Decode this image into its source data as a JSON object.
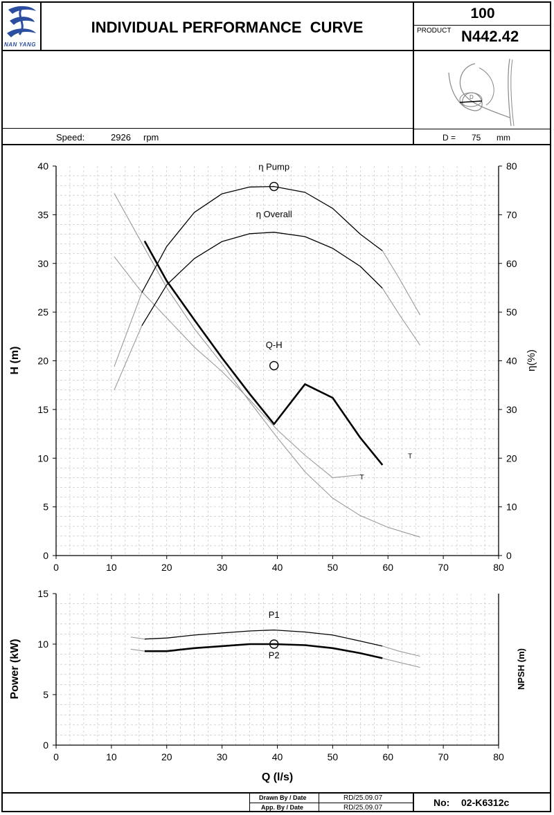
{
  "header": {
    "logo_text": "NAN YANG",
    "title": "INDIVIDUAL PERFORMANCE  CURVE",
    "size_code": "100",
    "product_label": "PRODUCT",
    "product_code": "N442.42"
  },
  "info": {
    "speed_label": "Speed:",
    "speed_value": "2926",
    "speed_unit": "rpm",
    "d_label": "D =",
    "d_value": "75",
    "d_unit": "mm",
    "impeller_label": "D"
  },
  "footer": {
    "drawn_label": "Drawn By / Date",
    "drawn_value": "RD/25.09.07",
    "app_label": "App. By / Date",
    "app_value": "RD/25.09.07",
    "no_label": "No:",
    "no_value": "02-K6312c"
  },
  "colors": {
    "main_curve": "#000000",
    "range_curve": "#9a9a9a",
    "grid": "#bdbdbd"
  },
  "chart_data": [
    {
      "type": "line",
      "xlabel": "Q (l/s)",
      "ylabel": "H (m)",
      "y2label": "η(%)",
      "xlim": [
        0,
        80
      ],
      "ylim": [
        0,
        40
      ],
      "y2lim": [
        0,
        80
      ],
      "xticks": [
        0,
        10,
        20,
        30,
        40,
        50,
        60,
        70,
        80
      ],
      "yticks": [
        0,
        5,
        10,
        15,
        20,
        25,
        30,
        35,
        40
      ],
      "y2ticks": [
        0,
        10,
        20,
        30,
        40,
        50,
        60,
        70,
        80
      ],
      "grid": true,
      "series": [
        {
          "name": "Q-H",
          "axis": "left",
          "style": "main",
          "x": [
            16,
            20,
            25,
            30,
            35,
            39.4,
            45,
            50,
            55,
            59
          ],
          "y": [
            32.3,
            28.2,
            24.2,
            20.3,
            16.6,
            13.5,
            17.6,
            16.2,
            12.1,
            9.3
          ]
        },
        {
          "name": "",
          "axis": "left",
          "style": "range",
          "x": [
            10.5,
            15,
            20,
            25,
            30,
            35,
            40,
            45,
            50,
            55,
            60,
            65.8
          ],
          "y": [
            37.2,
            32.6,
            27.5,
            23.3,
            19.7,
            15.8,
            12.1,
            8.6,
            5.9,
            4.1,
            2.9,
            1.9
          ]
        },
        {
          "name": "",
          "axis": "left",
          "style": "range",
          "x": [
            10.5,
            15,
            20,
            25,
            30,
            35,
            40,
            45,
            50,
            55.3
          ],
          "y": [
            30.7,
            27.4,
            24.4,
            21.4,
            18.9,
            16.0,
            12.9,
            10.3,
            8.0,
            8.3
          ]
        },
        {
          "name": "η Pump",
          "axis": "right",
          "style": "main",
          "x": [
            15.5,
            20,
            25,
            30,
            35,
            39.4,
            45,
            50,
            55,
            59
          ],
          "y": [
            54,
            63.5,
            70.5,
            74.3,
            75.7,
            75.8,
            74.6,
            71.3,
            66.0,
            62.6
          ]
        },
        {
          "name": "",
          "axis": "right",
          "style": "range",
          "x": [
            10.5,
            15.5
          ],
          "y": [
            38.8,
            54
          ]
        },
        {
          "name": "",
          "axis": "right",
          "style": "range",
          "x": [
            59,
            62,
            65.8
          ],
          "y": [
            62.6,
            57.0,
            49.4
          ]
        },
        {
          "name": "η Overall",
          "axis": "right",
          "style": "main",
          "x": [
            15.5,
            20,
            25,
            30,
            35,
            39.4,
            45,
            50,
            55,
            59
          ],
          "y": [
            47.2,
            55.6,
            61.0,
            64.5,
            66.1,
            66.4,
            65.5,
            63.1,
            59.4,
            54.9
          ]
        },
        {
          "name": "",
          "axis": "right",
          "style": "range",
          "x": [
            10.5,
            15.5
          ],
          "y": [
            34.0,
            47.2
          ]
        },
        {
          "name": "",
          "axis": "right",
          "style": "range",
          "x": [
            59,
            62,
            65.8
          ],
          "y": [
            54.9,
            49.6,
            43.2
          ]
        }
      ],
      "annotations": [
        {
          "text": "η Pump",
          "x": 39.4,
          "y2": 79.2
        },
        {
          "text": "η Overall",
          "x": 39.4,
          "y2": 69.5
        },
        {
          "text": "Q-H",
          "x": 39.4,
          "y": 21.3
        },
        {
          "text": "T",
          "x": 64,
          "y": 10.0
        },
        {
          "text": "T",
          "x": 55.3,
          "y": 7.8
        }
      ],
      "markers": [
        {
          "x": 39.4,
          "y2": 75.8
        },
        {
          "x": 39.4,
          "y": 19.5
        }
      ]
    },
    {
      "type": "line",
      "xlabel": "Q (l/s)",
      "ylabel": "Power (kW)",
      "y2label": "NPSH (m)",
      "xlim": [
        0,
        80
      ],
      "ylim": [
        0,
        15
      ],
      "xticks": [
        0,
        10,
        20,
        30,
        40,
        50,
        60,
        70,
        80
      ],
      "yticks": [
        0,
        5,
        10,
        15
      ],
      "grid": true,
      "series": [
        {
          "name": "P1",
          "axis": "left",
          "style": "main",
          "x": [
            16,
            20,
            25,
            30,
            35,
            39.4,
            45,
            50,
            55,
            59
          ],
          "y": [
            10.5,
            10.6,
            10.9,
            11.1,
            11.3,
            11.4,
            11.2,
            10.9,
            10.3,
            9.8
          ]
        },
        {
          "name": "",
          "axis": "left",
          "style": "range",
          "x": [
            13.5,
            16
          ],
          "y": [
            10.7,
            10.5
          ]
        },
        {
          "name": "",
          "axis": "left",
          "style": "range",
          "x": [
            59,
            62,
            65.8
          ],
          "y": [
            9.8,
            9.3,
            8.8
          ]
        },
        {
          "name": "P2",
          "axis": "left",
          "style": "main",
          "x": [
            16,
            20,
            25,
            30,
            35,
            39.4,
            45,
            50,
            55,
            59
          ],
          "y": [
            9.3,
            9.3,
            9.6,
            9.8,
            10.0,
            10.0,
            9.9,
            9.6,
            9.1,
            8.6
          ]
        },
        {
          "name": "",
          "axis": "left",
          "style": "range",
          "x": [
            13.5,
            16
          ],
          "y": [
            9.5,
            9.3
          ]
        },
        {
          "name": "",
          "axis": "left",
          "style": "range",
          "x": [
            59,
            62,
            65.8
          ],
          "y": [
            8.6,
            8.2,
            7.7
          ]
        }
      ],
      "annotations": [
        {
          "text": "P1",
          "x": 39.4,
          "y": 12.6
        },
        {
          "text": "P2",
          "x": 39.4,
          "y": 8.6
        }
      ],
      "markers": [
        {
          "x": 39.4,
          "y": 10.0
        }
      ]
    }
  ]
}
